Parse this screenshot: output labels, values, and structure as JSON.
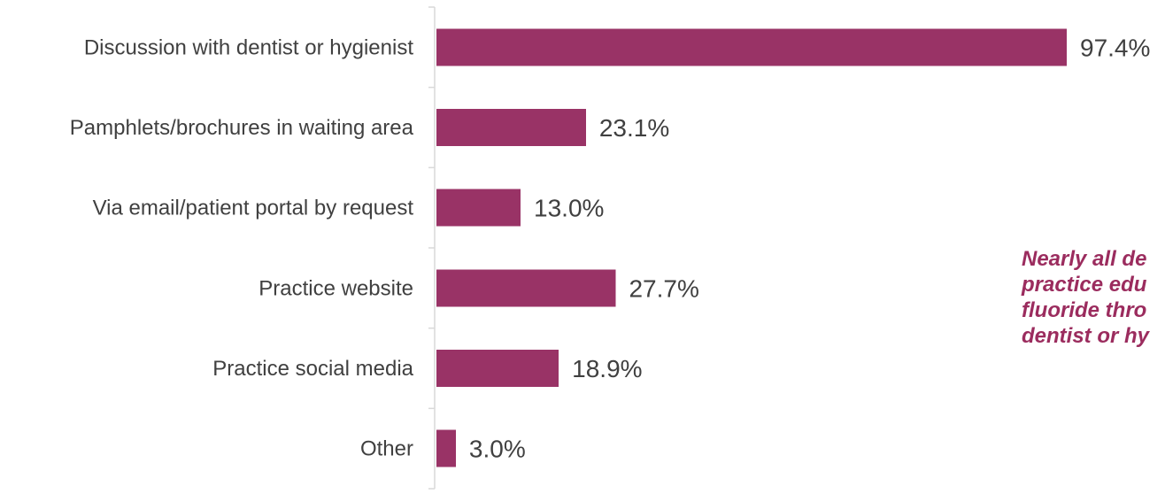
{
  "chart_data": {
    "type": "bar",
    "orientation": "horizontal",
    "categories": [
      "Discussion with dentist or hygienist",
      "Pamphlets/brochures in waiting area",
      "Via email/patient portal by request",
      "Practice website",
      "Practice social media",
      "Other"
    ],
    "values": [
      97.4,
      23.1,
      13.0,
      27.7,
      18.9,
      3.0
    ],
    "value_labels": [
      "97.4%",
      "23.1%",
      "13.0%",
      "27.7%",
      "18.9%",
      "3.0%"
    ],
    "xlim": [
      0,
      100
    ],
    "bar_color": "#993366",
    "grid": false,
    "annotation_lines": [
      "Nearly all de",
      "practice edu",
      "fluoride thro",
      "dentist or hy"
    ]
  }
}
